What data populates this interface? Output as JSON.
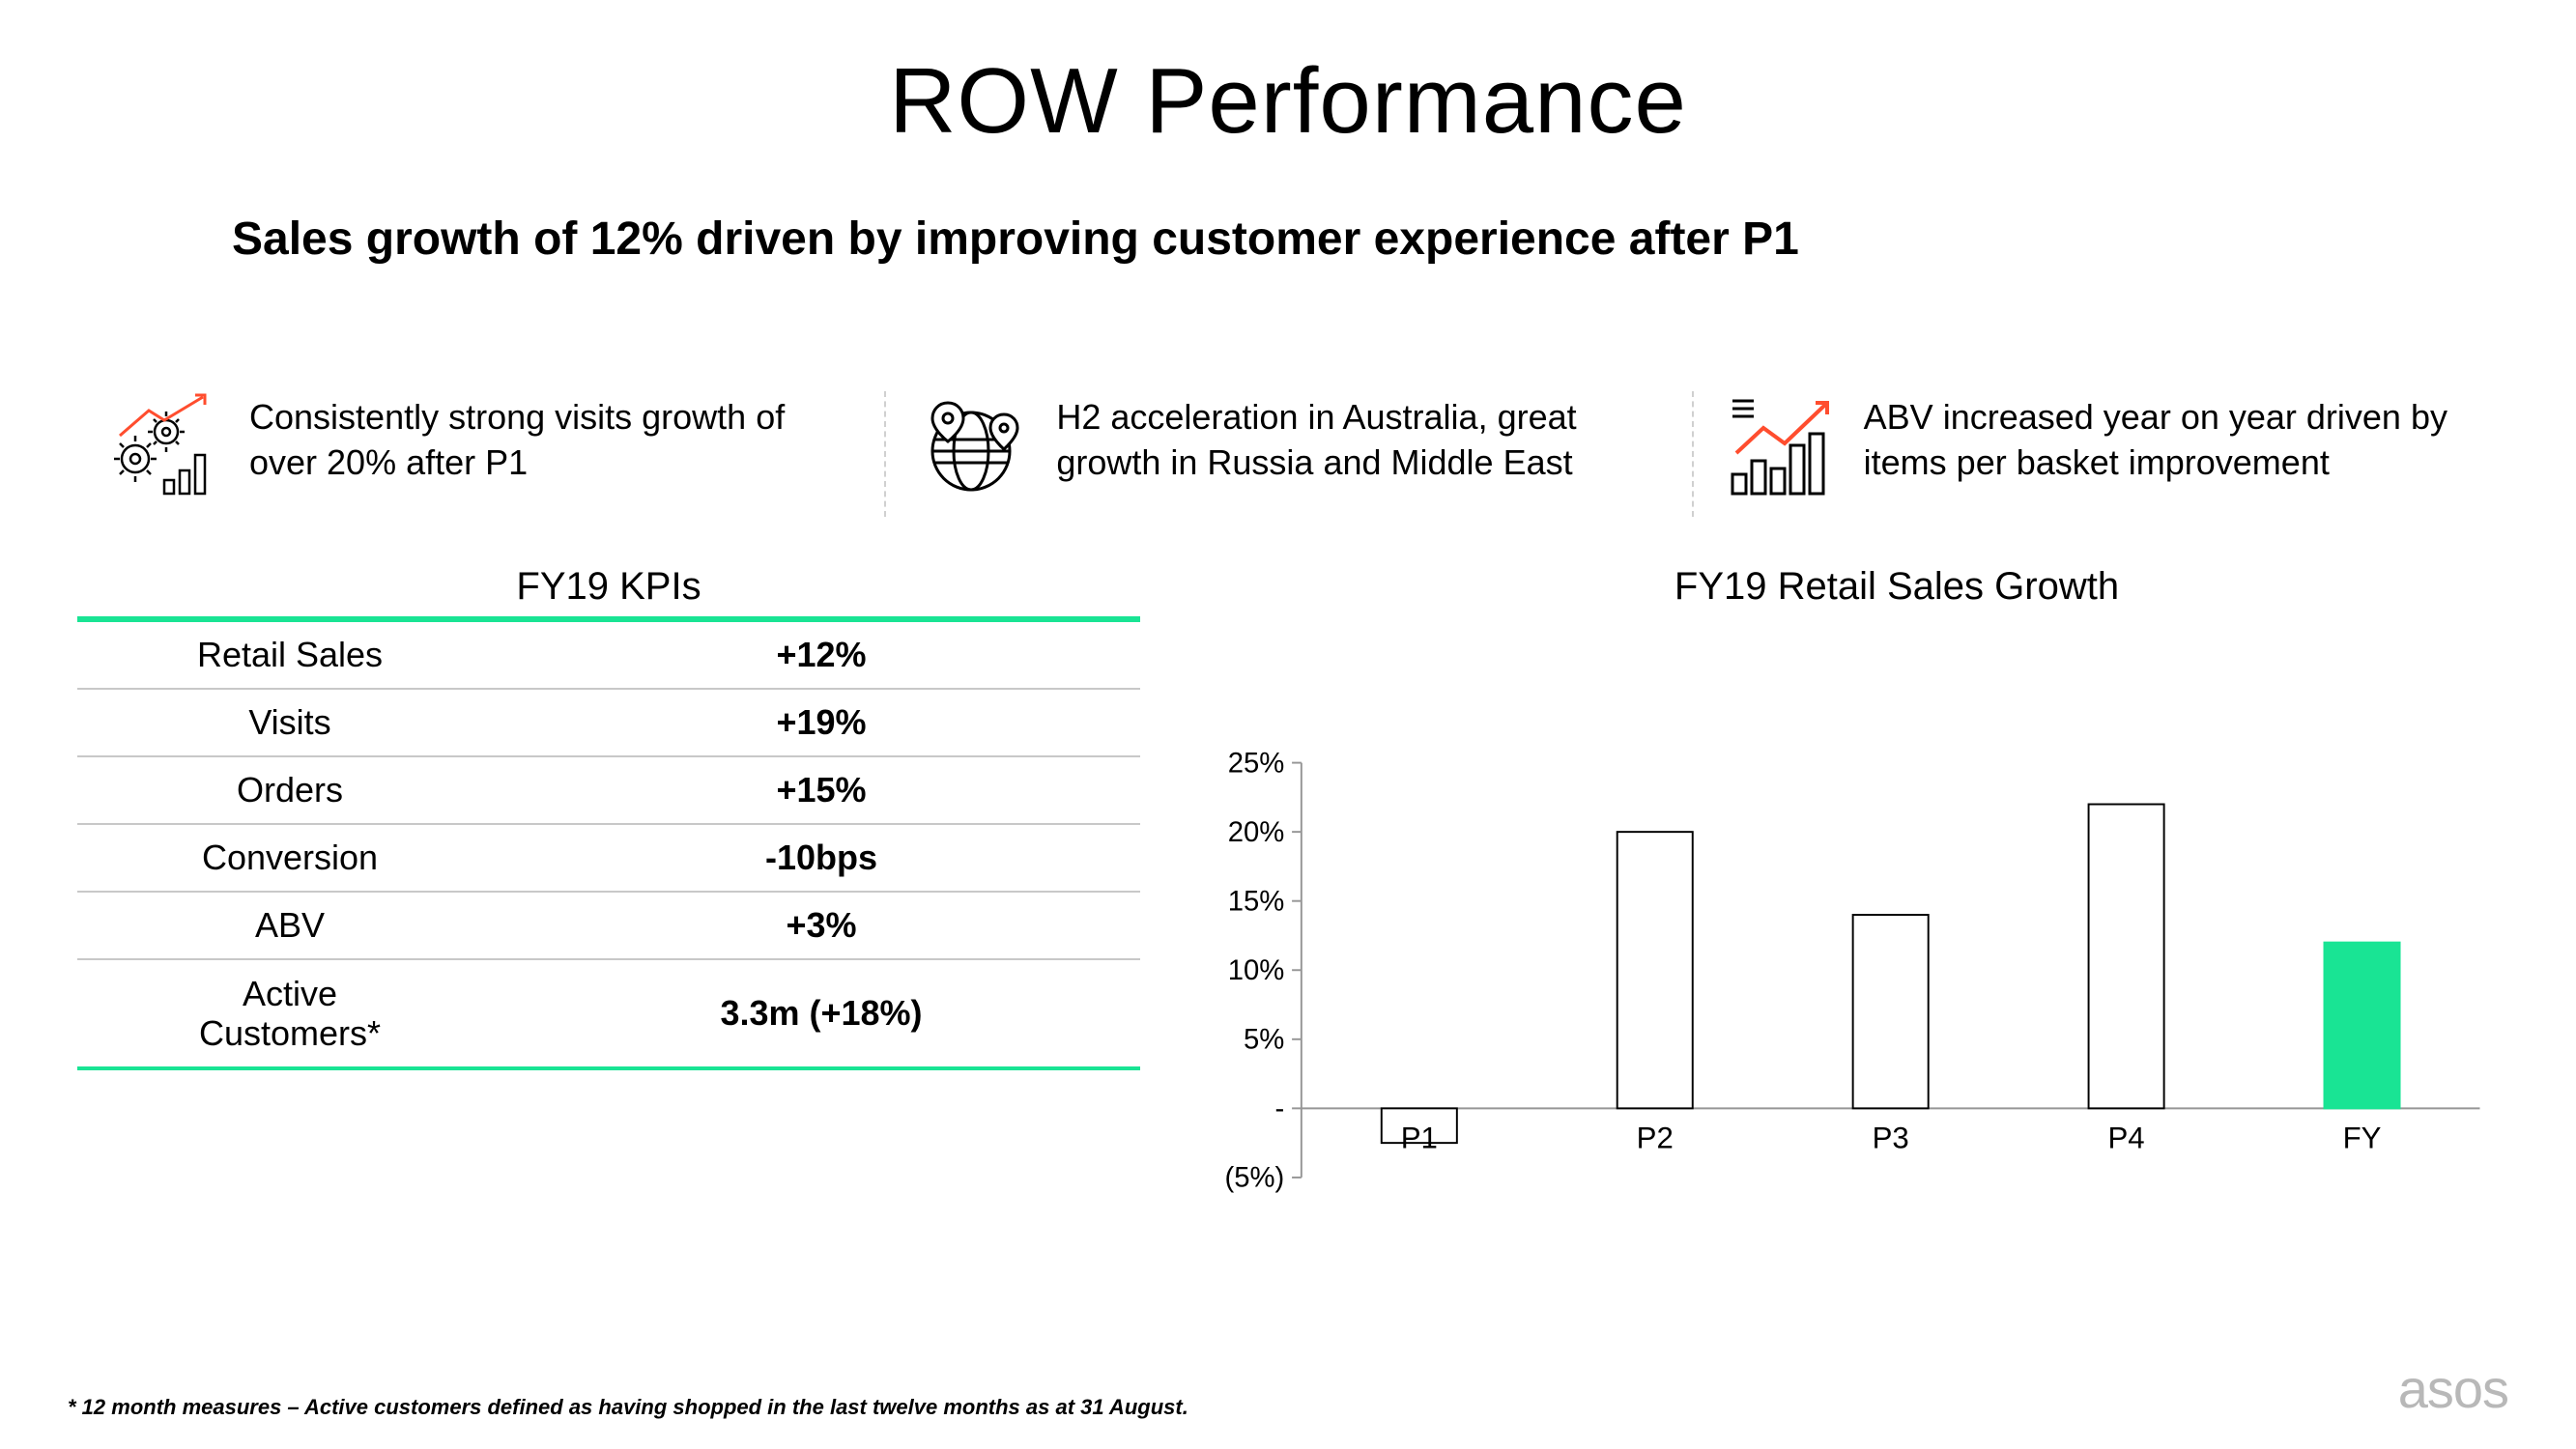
{
  "title": "ROW Performance",
  "subtitle": "Sales growth of 12% driven by improving customer experience after P1",
  "highlights": [
    {
      "id": "visits-growth",
      "icon": "gears-chart",
      "text": "Consistently strong visits growth of over 20% after P1"
    },
    {
      "id": "h2-acceleration",
      "icon": "globe-pins",
      "text": "H2 acceleration in Australia, great growth in Russia and Middle East"
    },
    {
      "id": "abv-increase",
      "icon": "bars-trend",
      "text": "ABV increased year on year driven by items per basket improvement"
    }
  ],
  "kpi_table": {
    "title": "FY19 KPIs",
    "accent_color": "#19e494",
    "divider_color": "#c8c8c8",
    "label_fontsize": 36,
    "value_fontsize": 36,
    "rows": [
      {
        "label": "Retail Sales",
        "value": "+12%"
      },
      {
        "label": "Visits",
        "value": "+19%"
      },
      {
        "label": "Orders",
        "value": "+15%"
      },
      {
        "label": "Conversion",
        "value": "-10bps"
      },
      {
        "label": "ABV",
        "value": "+3%"
      },
      {
        "label": "Active Customers*",
        "value": "3.3m (+18%)"
      }
    ]
  },
  "chart": {
    "type": "bar",
    "title": "FY19 Retail Sales Growth",
    "categories": [
      "P1",
      "P2",
      "P3",
      "P4",
      "FY"
    ],
    "values": [
      -2.5,
      20,
      14,
      22,
      12
    ],
    "bar_fill_colors": [
      "#ffffff",
      "#ffffff",
      "#ffffff",
      "#ffffff",
      "#19e494"
    ],
    "bar_border_colors": [
      "#000000",
      "#000000",
      "#000000",
      "#000000",
      "#19e494"
    ],
    "bar_border_width": 2,
    "ylim": [
      -5,
      25
    ],
    "yticks": [
      -5,
      0,
      5,
      10,
      15,
      20,
      25
    ],
    "ytick_labels": [
      "(5%)",
      "-",
      "5%",
      "10%",
      "15%",
      "20%",
      "25%"
    ],
    "axis_color": "#969696",
    "tick_font_size": 30,
    "title_fontsize": 40,
    "bar_width_ratio": 0.32,
    "background_color": "#ffffff"
  },
  "footnote": "* 12 month measures – Active customers defined as having shopped in the last twelve months as at 31 August.",
  "brand": "asos",
  "colors": {
    "icon_stroke": "#000000",
    "icon_accent": "#ff4d2e",
    "brand_color": "#b8b8b8"
  }
}
